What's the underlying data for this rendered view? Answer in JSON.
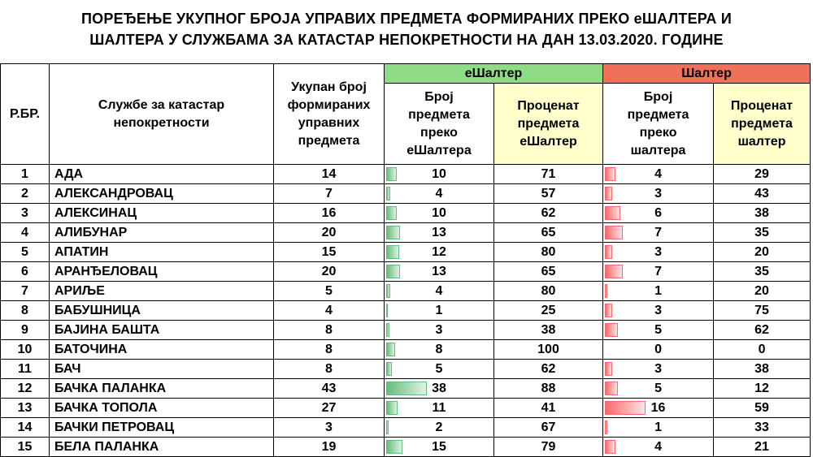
{
  "title": {
    "line1": "ПОРЕЂЕЊЕ УКУПНОГ БРОЈА УПРАВИХ ПРЕДМЕТА ФОРМИРАНИХ ПРЕКО еШАЛТЕРА И",
    "line2": "ШАЛТЕРА У СЛУЖБАМА ЗА КАТАСТАР НЕПОКРЕТНОСТИ НА ДАН 13.03.2020. ГОДИНЕ"
  },
  "headers": {
    "rbr": "Р.БР.",
    "office": "Службе за катастар непокретности",
    "total": "Укупан број формираних управних предмета",
    "group_eshalter": "еШалтер",
    "group_shalter": "Шалтер",
    "e_count": "Број предмета преко еШалтера",
    "e_percent": "Проценат предмета еШалтер",
    "s_count": "Број предмета преко шалтера",
    "s_percent": "Проценат предмета шалтер"
  },
  "colors": {
    "green_group": "#8fdc86",
    "red_group": "#f0705a",
    "yellow_header": "#ffffcc",
    "green_bar": "#63be7b",
    "red_bar": "#f8696b"
  },
  "rows": [
    {
      "rbr": "1",
      "name": "АДА",
      "total": "14",
      "e_count": "10",
      "e_percent": "71",
      "s_count": "4",
      "s_percent": "29"
    },
    {
      "rbr": "2",
      "name": "АЛЕКСАНДРОВАЦ",
      "total": "7",
      "e_count": "4",
      "e_percent": "57",
      "s_count": "3",
      "s_percent": "43"
    },
    {
      "rbr": "3",
      "name": "АЛЕКСИНАЦ",
      "total": "16",
      "e_count": "10",
      "e_percent": "62",
      "s_count": "6",
      "s_percent": "38"
    },
    {
      "rbr": "4",
      "name": "АЛИБУНАР",
      "total": "20",
      "e_count": "13",
      "e_percent": "65",
      "s_count": "7",
      "s_percent": "35"
    },
    {
      "rbr": "5",
      "name": "АПАТИН",
      "total": "15",
      "e_count": "12",
      "e_percent": "80",
      "s_count": "3",
      "s_percent": "20"
    },
    {
      "rbr": "6",
      "name": "АРАНЂЕЛОВАЦ",
      "total": "20",
      "e_count": "13",
      "e_percent": "65",
      "s_count": "7",
      "s_percent": "35"
    },
    {
      "rbr": "7",
      "name": "АРИЉЕ",
      "total": "5",
      "e_count": "4",
      "e_percent": "80",
      "s_count": "1",
      "s_percent": "20"
    },
    {
      "rbr": "8",
      "name": "БАБУШНИЦА",
      "total": "4",
      "e_count": "1",
      "e_percent": "25",
      "s_count": "3",
      "s_percent": "75"
    },
    {
      "rbr": "9",
      "name": "БАЈИНА БАШТА",
      "total": "8",
      "e_count": "3",
      "e_percent": "38",
      "s_count": "5",
      "s_percent": "62"
    },
    {
      "rbr": "10",
      "name": "БАТОЧИНА",
      "total": "8",
      "e_count": "8",
      "e_percent": "100",
      "s_count": "0",
      "s_percent": "0"
    },
    {
      "rbr": "11",
      "name": "БАЧ",
      "total": "8",
      "e_count": "5",
      "e_percent": "62",
      "s_count": "3",
      "s_percent": "38"
    },
    {
      "rbr": "12",
      "name": "БАЧКА ПАЛАНКА",
      "total": "43",
      "e_count": "38",
      "e_percent": "88",
      "s_count": "5",
      "s_percent": "12"
    },
    {
      "rbr": "13",
      "name": "БАЧКА ТОПОЛА",
      "total": "27",
      "e_count": "11",
      "e_percent": "41",
      "s_count": "16",
      "s_percent": "59"
    },
    {
      "rbr": "14",
      "name": "БАЧКИ ПЕТРОВАЦ",
      "total": "3",
      "e_count": "2",
      "e_percent": "67",
      "s_count": "1",
      "s_percent": "33"
    },
    {
      "rbr": "15",
      "name": "БЕЛА ПАЛАНКА",
      "total": "19",
      "e_count": "15",
      "e_percent": "79",
      "s_count": "4",
      "s_percent": "21"
    }
  ]
}
